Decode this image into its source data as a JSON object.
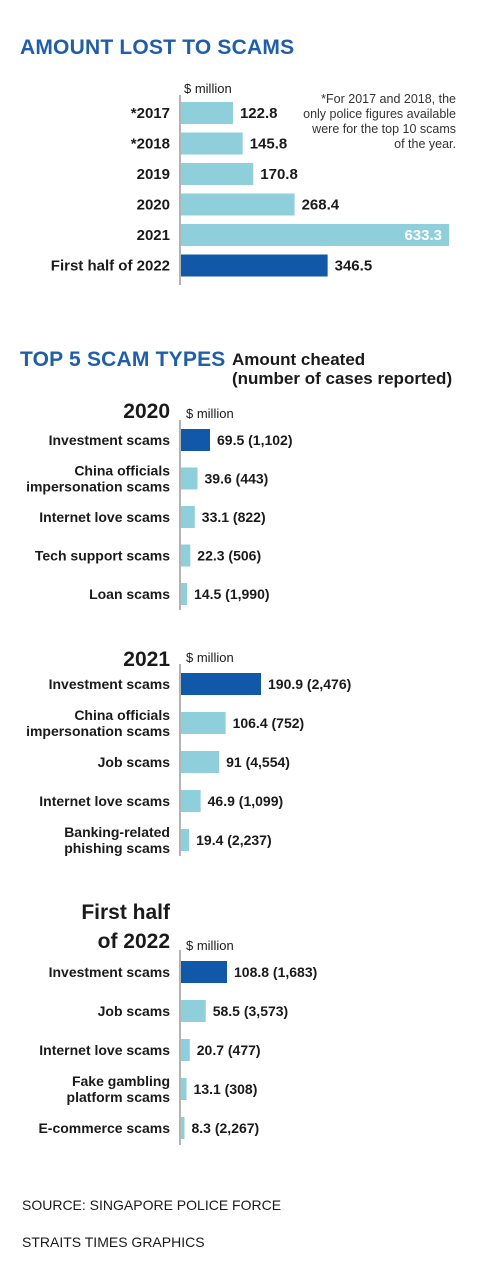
{
  "chart_data": [
    {
      "type": "bar",
      "orientation": "horizontal",
      "title": "AMOUNT LOST TO SCAMS",
      "unit_label": "$ million",
      "note": "*For 2017 and 2018, the only police figures available were for the top 10 scams of the year.",
      "categories": [
        "*2017",
        "*2018",
        "2019",
        "2020",
        "2021",
        "First half of 2022"
      ],
      "values": [
        122.8,
        145.8,
        170.8,
        268.4,
        633.3,
        346.5
      ],
      "value_labels": [
        "122.8",
        "145.8",
        "170.8",
        "268.4",
        "633.3",
        "346.5"
      ],
      "highlight_index": 5
    },
    {
      "type": "bar",
      "orientation": "horizontal",
      "group_title": "2020",
      "unit_label": "$ million",
      "categories": [
        "Investment scams",
        "China officials impersonation scams",
        "Internet love scams",
        "Tech support scams",
        "Loan scams"
      ],
      "values": [
        69.5,
        39.6,
        33.1,
        22.3,
        14.5
      ],
      "cases": [
        1102,
        443,
        822,
        506,
        1990
      ],
      "value_labels": [
        "69.5 (1,102)",
        "39.6 (443)",
        "33.1 (822)",
        "22.3 (506)",
        "14.5 (1,990)"
      ],
      "highlight_index": 0
    },
    {
      "type": "bar",
      "orientation": "horizontal",
      "group_title": "2021",
      "unit_label": "$ million",
      "categories": [
        "Investment scams",
        "China officials impersonation scams",
        "Job scams",
        "Internet love scams",
        "Banking-related phishing scams"
      ],
      "values": [
        190.9,
        106.4,
        91,
        46.9,
        19.4
      ],
      "cases": [
        2476,
        752,
        4554,
        1099,
        2237
      ],
      "value_labels": [
        "190.9 (2,476)",
        "106.4 (752)",
        "91 (4,554)",
        "46.9 (1,099)",
        "19.4 (2,237)"
      ],
      "highlight_index": 0
    },
    {
      "type": "bar",
      "orientation": "horizontal",
      "group_title": "First half of 2022",
      "unit_label": "$ million",
      "categories": [
        "Investment scams",
        "Job scams",
        "Internet love scams",
        "Fake gambling platform scams",
        "E-commerce scams"
      ],
      "values": [
        108.8,
        58.5,
        20.7,
        13.1,
        8.3
      ],
      "cases": [
        1683,
        3573,
        477,
        308,
        2267
      ],
      "value_labels": [
        "108.8 (1,683)",
        "58.5 (3,573)",
        "20.7 (477)",
        "13.1 (308)",
        "8.3 (2,267)"
      ],
      "highlight_index": 0
    }
  ],
  "section2": {
    "title": "TOP 5 SCAM TYPES",
    "subtitle_line1": "Amount cheated",
    "subtitle_line2": "(number of cases reported)"
  },
  "group_heads": {
    "g2020": "2020",
    "g2021": "2021",
    "g2022_line1": "First half",
    "g2022_line2": "of 2022"
  },
  "footer": {
    "source": "SOURCE: SINGAPORE POLICE FORCE",
    "credit": "STRAITS TIMES GRAPHICS"
  },
  "colors": {
    "bar_light": "#8fcfdb",
    "bar_highlight": "#1258a8",
    "title_blue": "#1f5fa8",
    "axis": "#9a9a9a",
    "text": "#1a1a1a"
  }
}
